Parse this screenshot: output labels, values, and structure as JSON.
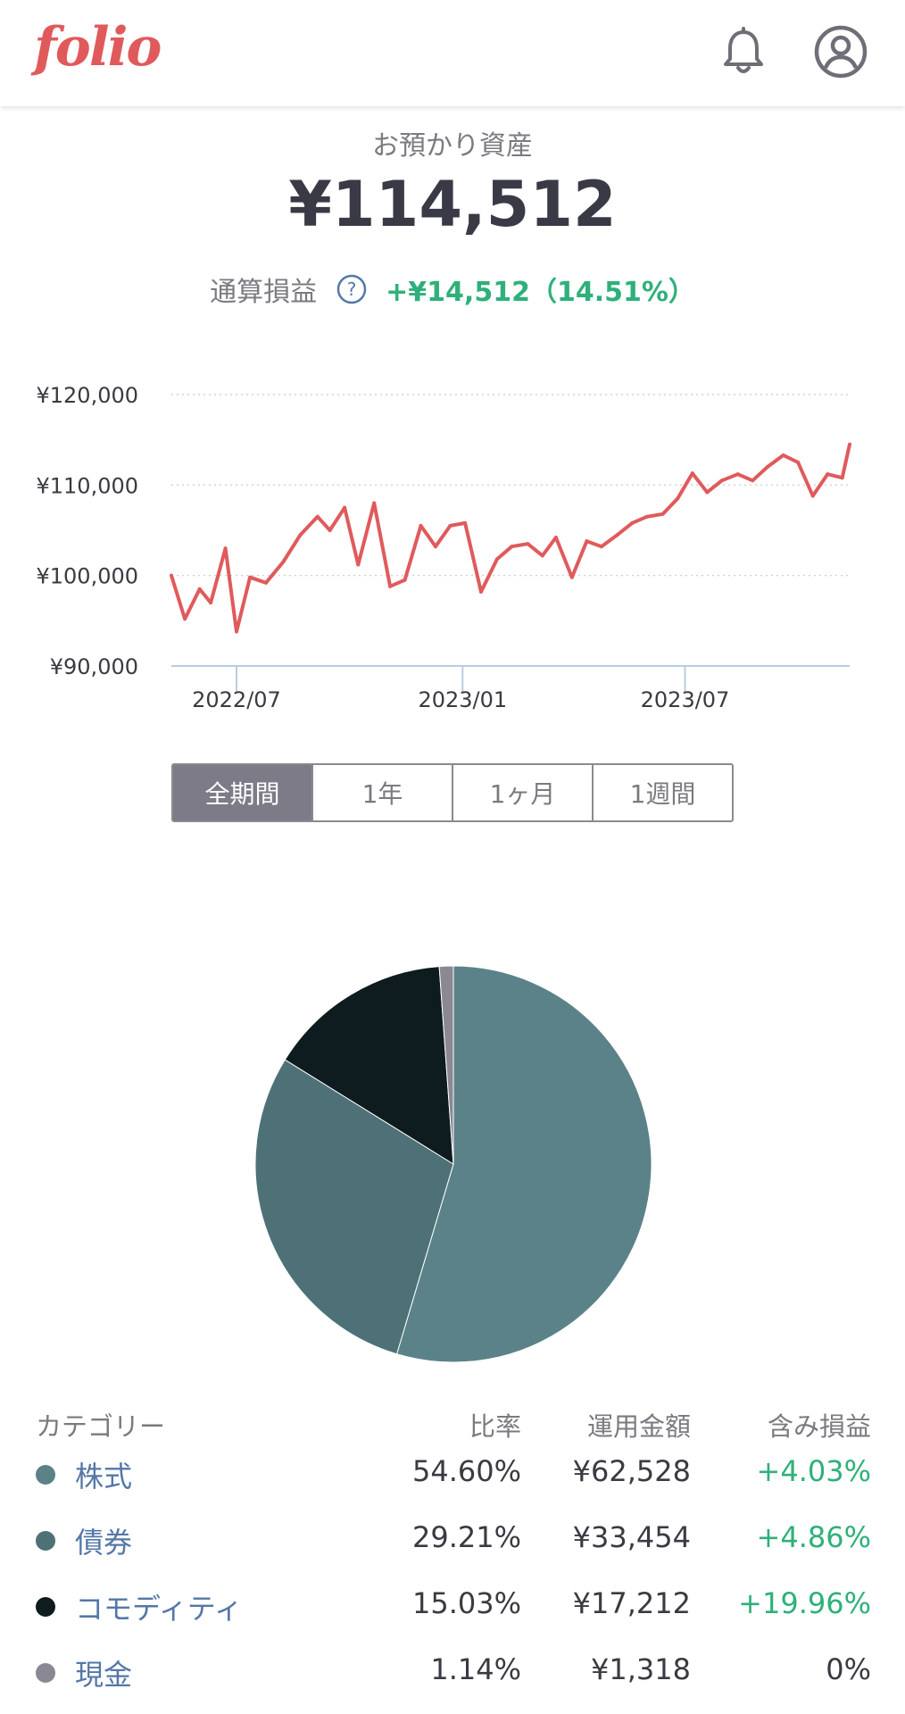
{
  "header": {
    "logo_text": "folio",
    "notification_icon": "bell-icon",
    "account_icon": "user-circle-icon"
  },
  "summary": {
    "label": "お預かり資産",
    "total": "¥114,512",
    "pnl_label": "通算損益",
    "pnl_value": "+¥14,512（14.51%）"
  },
  "period_tabs": [
    {
      "label": "全期間",
      "active": true
    },
    {
      "label": "1年",
      "active": false
    },
    {
      "label": "1ヶ月",
      "active": false
    },
    {
      "label": "1週間",
      "active": false
    }
  ],
  "chart_data": [
    {
      "type": "line",
      "title": "",
      "xlabel": "",
      "ylabel": "",
      "ylim": [
        90000,
        120000
      ],
      "yticks": [
        "¥120,000",
        "¥110,000",
        "¥100,000",
        "¥90,000"
      ],
      "ytick_values": [
        120000,
        110000,
        100000,
        90000
      ],
      "xticks": [
        "2022/07",
        "2023/01",
        "2023/07"
      ],
      "xtick_dates": [
        "2022-07-01",
        "2023-01-01",
        "2023-07-01"
      ],
      "xlim": [
        "2022-05-09",
        "2023-11-12"
      ],
      "grid": true,
      "color": "#e05a5c",
      "series": [
        {
          "x": [
            "2022-05-09",
            "2022-05-20",
            "2022-06-01",
            "2022-06-10",
            "2022-06-22",
            "2022-07-01",
            "2022-07-12",
            "2022-07-25",
            "2022-08-08",
            "2022-08-22",
            "2022-09-05",
            "2022-09-15",
            "2022-09-27",
            "2022-10-08",
            "2022-10-21",
            "2022-11-03",
            "2022-11-15",
            "2022-11-28",
            "2022-12-10",
            "2022-12-22",
            "2023-01-03",
            "2023-01-16",
            "2023-01-29",
            "2023-02-10",
            "2023-02-23",
            "2023-03-07",
            "2023-03-18",
            "2023-03-31",
            "2023-04-12",
            "2023-04-24",
            "2023-05-07",
            "2023-05-19",
            "2023-05-31",
            "2023-06-13",
            "2023-06-25",
            "2023-07-07",
            "2023-07-19",
            "2023-07-31",
            "2023-08-13",
            "2023-08-25",
            "2023-09-06",
            "2023-09-19",
            "2023-10-01",
            "2023-10-13",
            "2023-10-25",
            "2023-11-06",
            "2023-11-12"
          ],
          "values": [
            100000,
            95200,
            98500,
            97000,
            103000,
            93800,
            99800,
            99200,
            101500,
            104500,
            106500,
            105000,
            107500,
            101200,
            108000,
            98800,
            99500,
            105500,
            103200,
            105500,
            105800,
            98200,
            101800,
            103200,
            103500,
            102200,
            104200,
            99800,
            103800,
            103200,
            104500,
            105800,
            106500,
            106800,
            108500,
            111300,
            109200,
            110500,
            111200,
            110500,
            112000,
            113300,
            112500,
            108800,
            111200,
            110800,
            114500
          ]
        }
      ]
    },
    {
      "type": "pie",
      "title": "",
      "categories": [
        "株式",
        "債券",
        "コモディティ",
        "現金"
      ],
      "values": [
        54.6,
        29.21,
        15.03,
        1.14
      ],
      "colors": [
        "#5b8289",
        "#4e7178",
        "#0e1b1f",
        "#8a8892"
      ]
    }
  ],
  "allocation_table": {
    "headers": {
      "category": "カテゴリー",
      "ratio": "比率",
      "amount": "運用金額",
      "unrealized": "含み損益"
    },
    "rows": [
      {
        "name": "株式",
        "ratio": "54.60%",
        "amount": "¥62,528",
        "pl": "+4.03%",
        "color": "#5b8289",
        "positive": true
      },
      {
        "name": "債券",
        "ratio": "29.21%",
        "amount": "¥33,454",
        "pl": "+4.86%",
        "color": "#4e7178",
        "positive": true
      },
      {
        "name": "コモディティ",
        "ratio": "15.03%",
        "amount": "¥17,212",
        "pl": "+19.96%",
        "color": "#0e1b1f",
        "positive": true
      },
      {
        "name": "現金",
        "ratio": "1.14%",
        "amount": "¥1,318",
        "pl": "0%",
        "color": "#8a8892",
        "positive": false
      }
    ]
  }
}
